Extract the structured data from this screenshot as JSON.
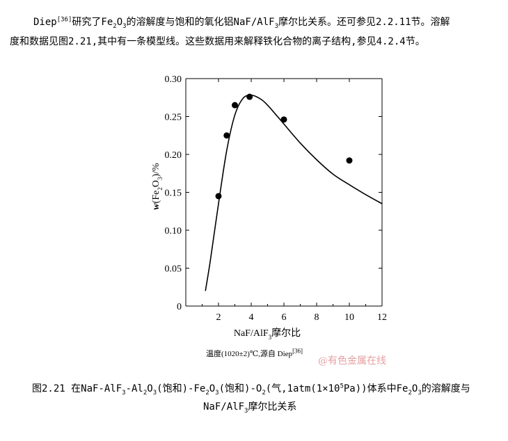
{
  "paragraph": {
    "line1_a": "Diep",
    "line1_ref": "[36]",
    "line1_b": "研究了Fe",
    "line1_sub1": "2",
    "line1_c": "O",
    "line1_sub2": "3",
    "line1_d": "的溶解度与饱和的氧化铝NaF/AlF",
    "line1_sub3": "3",
    "line1_e": "摩尔比关系。还可参见2.2.11节。溶解",
    "line2": "度和数据见图2.21,其中有一条模型线。这些数据用来解释铁化合物的离子结构,参见4.2.4节。"
  },
  "chart_data": {
    "type": "scatter",
    "xlabel": "NaF/AlF3摩尔比",
    "ylabel": "w(Fe2O3)/%",
    "xlim": [
      0,
      12
    ],
    "ylim": [
      0,
      0.3
    ],
    "xticks": [
      "2",
      "4",
      "6",
      "8",
      "10",
      "12"
    ],
    "yticks": [
      "0",
      "0.05",
      "0.10",
      "0.15",
      "0.20",
      "0.25",
      "0.30"
    ],
    "grid": false,
    "series": [
      {
        "points": [
          [
            2.0,
            0.145
          ],
          [
            2.5,
            0.225
          ],
          [
            3.0,
            0.265
          ],
          [
            3.9,
            0.276
          ],
          [
            6.0,
            0.246
          ],
          [
            10.0,
            0.192
          ]
        ]
      }
    ],
    "model_line": [
      [
        1.2,
        0.02
      ],
      [
        1.5,
        0.06
      ],
      [
        2.0,
        0.135
      ],
      [
        2.5,
        0.205
      ],
      [
        3.0,
        0.252
      ],
      [
        3.5,
        0.274
      ],
      [
        4.0,
        0.278
      ],
      [
        4.5,
        0.274
      ],
      [
        5.0,
        0.265
      ],
      [
        6.0,
        0.24
      ],
      [
        7.0,
        0.215
      ],
      [
        8.0,
        0.193
      ],
      [
        9.0,
        0.174
      ],
      [
        10.0,
        0.16
      ],
      [
        11.0,
        0.147
      ],
      [
        12.0,
        0.135
      ]
    ]
  },
  "source_note": {
    "text": "温度(1020±2)℃,源自 Diep",
    "ref": "[36]"
  },
  "watermark": "@有色金属在线",
  "caption": {
    "a": "图2.21 在NaF-AlF",
    "s1": "3",
    "b": "-Al",
    "s2": "2",
    "c": "O",
    "s3": "3",
    "d": "(饱和)-Fe",
    "s4": "2",
    "e": "O",
    "s5": "3",
    "f": "(饱和)-O",
    "s6": "2",
    "g": "(气,1atm(1×10",
    "sup1": "5",
    "h": "Pa))体系中Fe",
    "s7": "2",
    "i": "O",
    "s8": "3",
    "j": "的溶解度与",
    "line2_a": "NaF/AlF",
    "line2_s": "3",
    "line2_b": "摩尔比关系"
  }
}
